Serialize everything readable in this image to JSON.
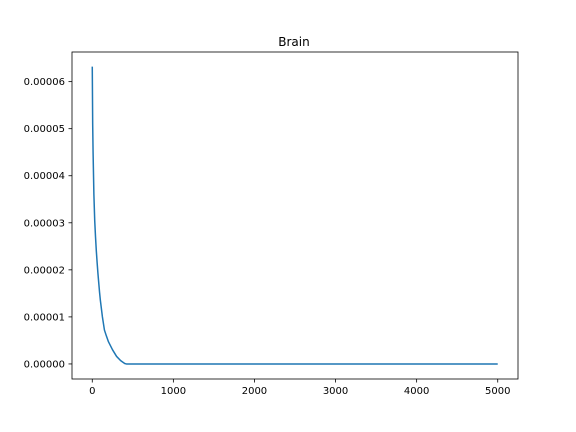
{
  "chart_data": {
    "type": "line",
    "title": "Brain",
    "xlabel": "",
    "ylabel": "",
    "xlim": [
      -250,
      5250
    ],
    "ylim": [
      -3.2e-06,
      6.63e-05
    ],
    "x_ticks": [
      0,
      1000,
      2000,
      3000,
      4000,
      5000
    ],
    "x_tick_labels": [
      "0",
      "1000",
      "2000",
      "3000",
      "4000",
      "5000"
    ],
    "y_ticks": [
      0,
      1e-05,
      2e-05,
      3e-05,
      4e-05,
      5e-05,
      6e-05
    ],
    "y_tick_labels": [
      "0.00000",
      "0.00001",
      "0.00002",
      "0.00003",
      "0.00004",
      "0.00005",
      "0.00006"
    ],
    "grid": false,
    "series": [
      {
        "name": "Brain",
        "color": "#1f77b4",
        "x": [
          0,
          5,
          10,
          20,
          30,
          40,
          50,
          60,
          70,
          80,
          90,
          100,
          125,
          150,
          175,
          200,
          250,
          300,
          350,
          400,
          420,
          1000,
          2000,
          3000,
          4000,
          5000
        ],
        "y": [
          6.32e-05,
          5.1e-05,
          4.5e-05,
          3.6e-05,
          3.05e-05,
          2.7e-05,
          2.4e-05,
          2.15e-05,
          1.92e-05,
          1.72e-05,
          1.52e-05,
          1.35e-05,
          1e-05,
          7.2e-06,
          5.9e-06,
          4.7e-06,
          3e-06,
          1.6e-06,
          7e-07,
          1e-07,
          0.0,
          0.0,
          0.0,
          0.0,
          0.0,
          0.0
        ]
      }
    ]
  }
}
